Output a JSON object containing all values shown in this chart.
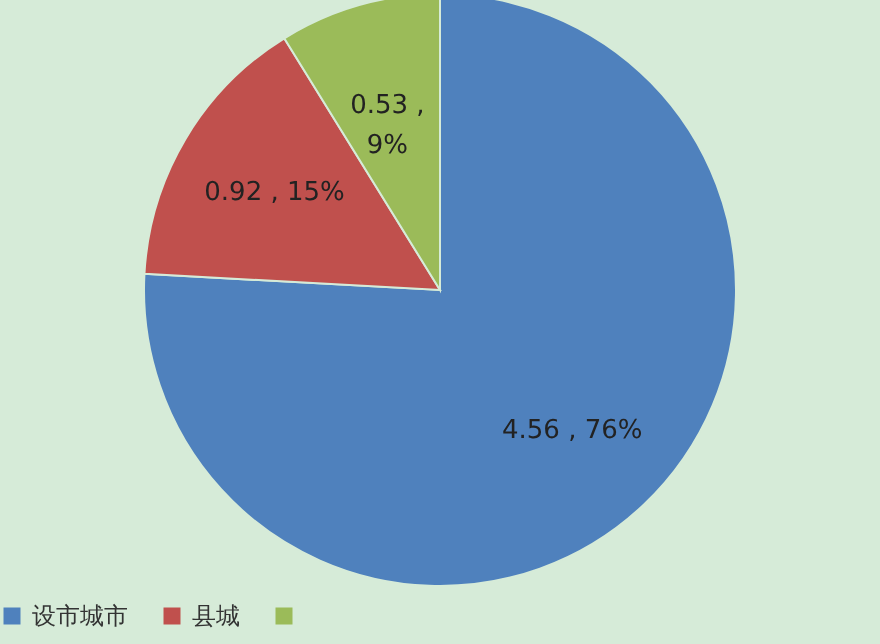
{
  "chart_data": {
    "type": "pie",
    "categories": [
      "设市城市",
      "县城",
      null
    ],
    "values": [
      4.56,
      0.92,
      0.53
    ],
    "colors": [
      "#4f81bd",
      "#c0504d",
      "#9bbb59"
    ],
    "value_labels": [
      "4.56 , 76%",
      "0.92 , 15%",
      "0.53 , 9%"
    ],
    "legend": "bottom"
  }
}
